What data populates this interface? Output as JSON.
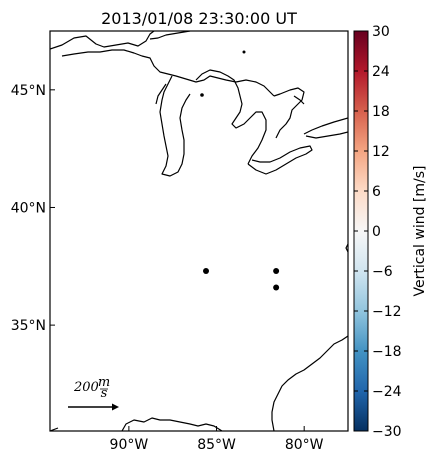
{
  "title": "2013/01/08 23:30:00 UT",
  "map": {
    "lon_range": [
      -94.5,
      -77.5
    ],
    "lat_range": [
      30.5,
      47.5
    ],
    "lat_ticks": [
      {
        "value": 45,
        "label": "45°N"
      },
      {
        "value": 40,
        "label": "40°N"
      },
      {
        "value": 35,
        "label": "35°N"
      }
    ],
    "lon_ticks": [
      {
        "value": -90,
        "label": "90°W"
      },
      {
        "value": -85,
        "label": "85°W"
      },
      {
        "value": -80,
        "label": "80°W"
      }
    ],
    "stations": [
      {
        "lon": -85.6,
        "lat": 37.3
      },
      {
        "lon": -81.6,
        "lat": 37.3
      },
      {
        "lon": -81.6,
        "lat": 36.6
      }
    ],
    "scale_arrow": {
      "value": "200",
      "unit_numerator": "m",
      "unit_denominator": "s"
    }
  },
  "colorbar": {
    "label": "Vertical wind [m/s]",
    "ticks": [
      "30",
      "24",
      "18",
      "12",
      "6",
      "0",
      "−6",
      "−12",
      "−18",
      "−24",
      "−30"
    ],
    "min": -30,
    "max": 30,
    "colors": {
      "high": "#67001f",
      "mid": "#f7f7f7",
      "low": "#053061"
    }
  }
}
